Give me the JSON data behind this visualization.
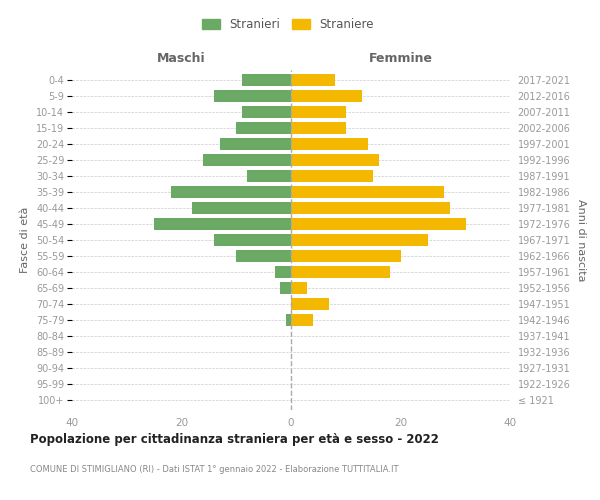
{
  "age_groups": [
    "100+",
    "95-99",
    "90-94",
    "85-89",
    "80-84",
    "75-79",
    "70-74",
    "65-69",
    "60-64",
    "55-59",
    "50-54",
    "45-49",
    "40-44",
    "35-39",
    "30-34",
    "25-29",
    "20-24",
    "15-19",
    "10-14",
    "5-9",
    "0-4"
  ],
  "birth_years": [
    "≤ 1921",
    "1922-1926",
    "1927-1931",
    "1932-1936",
    "1937-1941",
    "1942-1946",
    "1947-1951",
    "1952-1956",
    "1957-1961",
    "1962-1966",
    "1967-1971",
    "1972-1976",
    "1977-1981",
    "1982-1986",
    "1987-1991",
    "1992-1996",
    "1997-2001",
    "2002-2006",
    "2007-2011",
    "2012-2016",
    "2017-2021"
  ],
  "maschi": [
    0,
    0,
    0,
    0,
    0,
    1,
    0,
    2,
    3,
    10,
    14,
    25,
    18,
    22,
    8,
    16,
    13,
    10,
    9,
    14,
    9
  ],
  "femmine": [
    0,
    0,
    0,
    0,
    0,
    4,
    7,
    3,
    18,
    20,
    25,
    32,
    29,
    28,
    15,
    16,
    14,
    10,
    10,
    13,
    8
  ],
  "color_maschi": "#6aaa64",
  "color_femmine": "#f5b800",
  "title": "Popolazione per cittadinanza straniera per età e sesso - 2022",
  "subtitle": "COMUNE DI STIMIGLIANO (RI) - Dati ISTAT 1° gennaio 2022 - Elaborazione TUTTITALIA.IT",
  "ylabel_left": "Fasce di età",
  "ylabel_right": "Anni di nascita",
  "xlabel_maschi": "Maschi",
  "xlabel_femmine": "Femmine",
  "legend_maschi": "Stranieri",
  "legend_femmine": "Straniere",
  "xlim": 40,
  "background_color": "#ffffff",
  "grid_color": "#cccccc",
  "bar_height": 0.75
}
